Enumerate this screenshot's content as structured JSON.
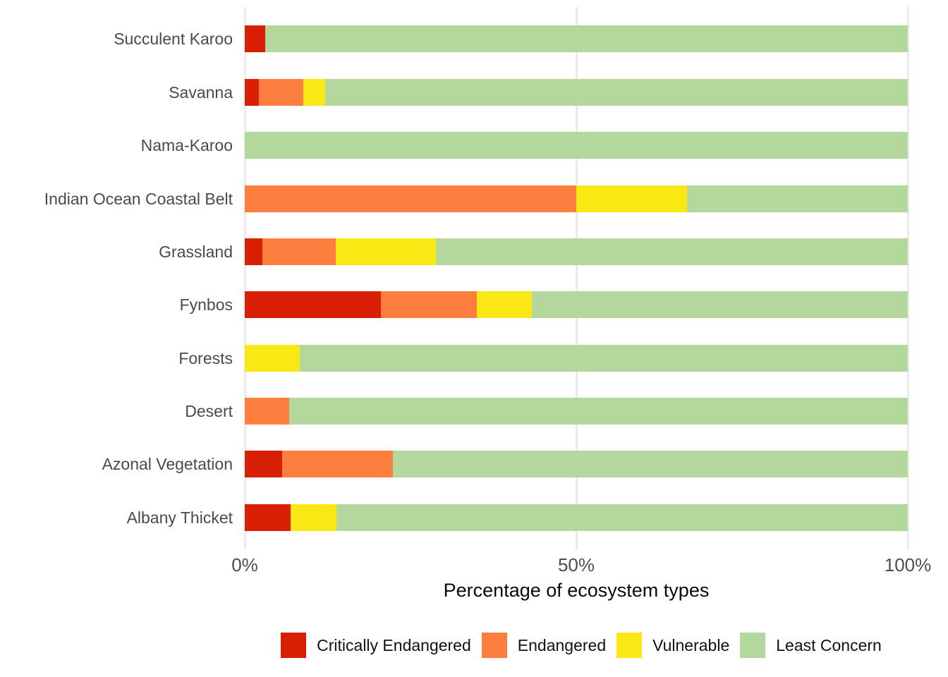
{
  "chart_data": {
    "type": "bar",
    "orientation": "horizontal",
    "stacked": true,
    "title": "",
    "xlabel": "Percentage of ecosystem types",
    "ylabel": "",
    "xlim": [
      0,
      100
    ],
    "grid": "vertical-major-only",
    "background": "#ffffff",
    "gridline_color": "#ebebeb",
    "x_ticks": [
      {
        "value": 0,
        "label": "0%"
      },
      {
        "value": 50,
        "label": "50%"
      },
      {
        "value": 100,
        "label": "100%"
      }
    ],
    "categories": [
      "Succulent Karoo",
      "Savanna",
      "Nama-Karoo",
      "Indian Ocean Coastal Belt",
      "Grassland",
      "Fynbos",
      "Forests",
      "Desert",
      "Azonal Vegetation",
      "Albany Thicket"
    ],
    "series": [
      {
        "name": "Critically Endangered",
        "color": "#d81e05",
        "values": [
          3.1,
          2.1,
          0,
          0,
          2.7,
          20.5,
          0,
          0,
          5.6,
          6.9
        ]
      },
      {
        "name": "Endangered",
        "color": "#fc7f3f",
        "values": [
          0,
          6.7,
          0,
          50,
          11.0,
          14.5,
          0,
          6.7,
          16.7,
          0
        ]
      },
      {
        "name": "Vulnerable",
        "color": "#f9e814",
        "values": [
          0,
          3.3,
          0,
          16.7,
          15.1,
          8.3,
          8.3,
          0,
          0,
          6.9
        ]
      },
      {
        "name": "Least Concern",
        "color": "#b4d79d",
        "values": [
          96.9,
          87.9,
          100,
          33.3,
          71.2,
          56.7,
          91.7,
          93.3,
          77.7,
          86.2
        ]
      }
    ],
    "legend": {
      "position": "bottom",
      "entries": [
        "Critically Endangered",
        "Endangered",
        "Vulnerable",
        "Least Concern"
      ]
    }
  }
}
